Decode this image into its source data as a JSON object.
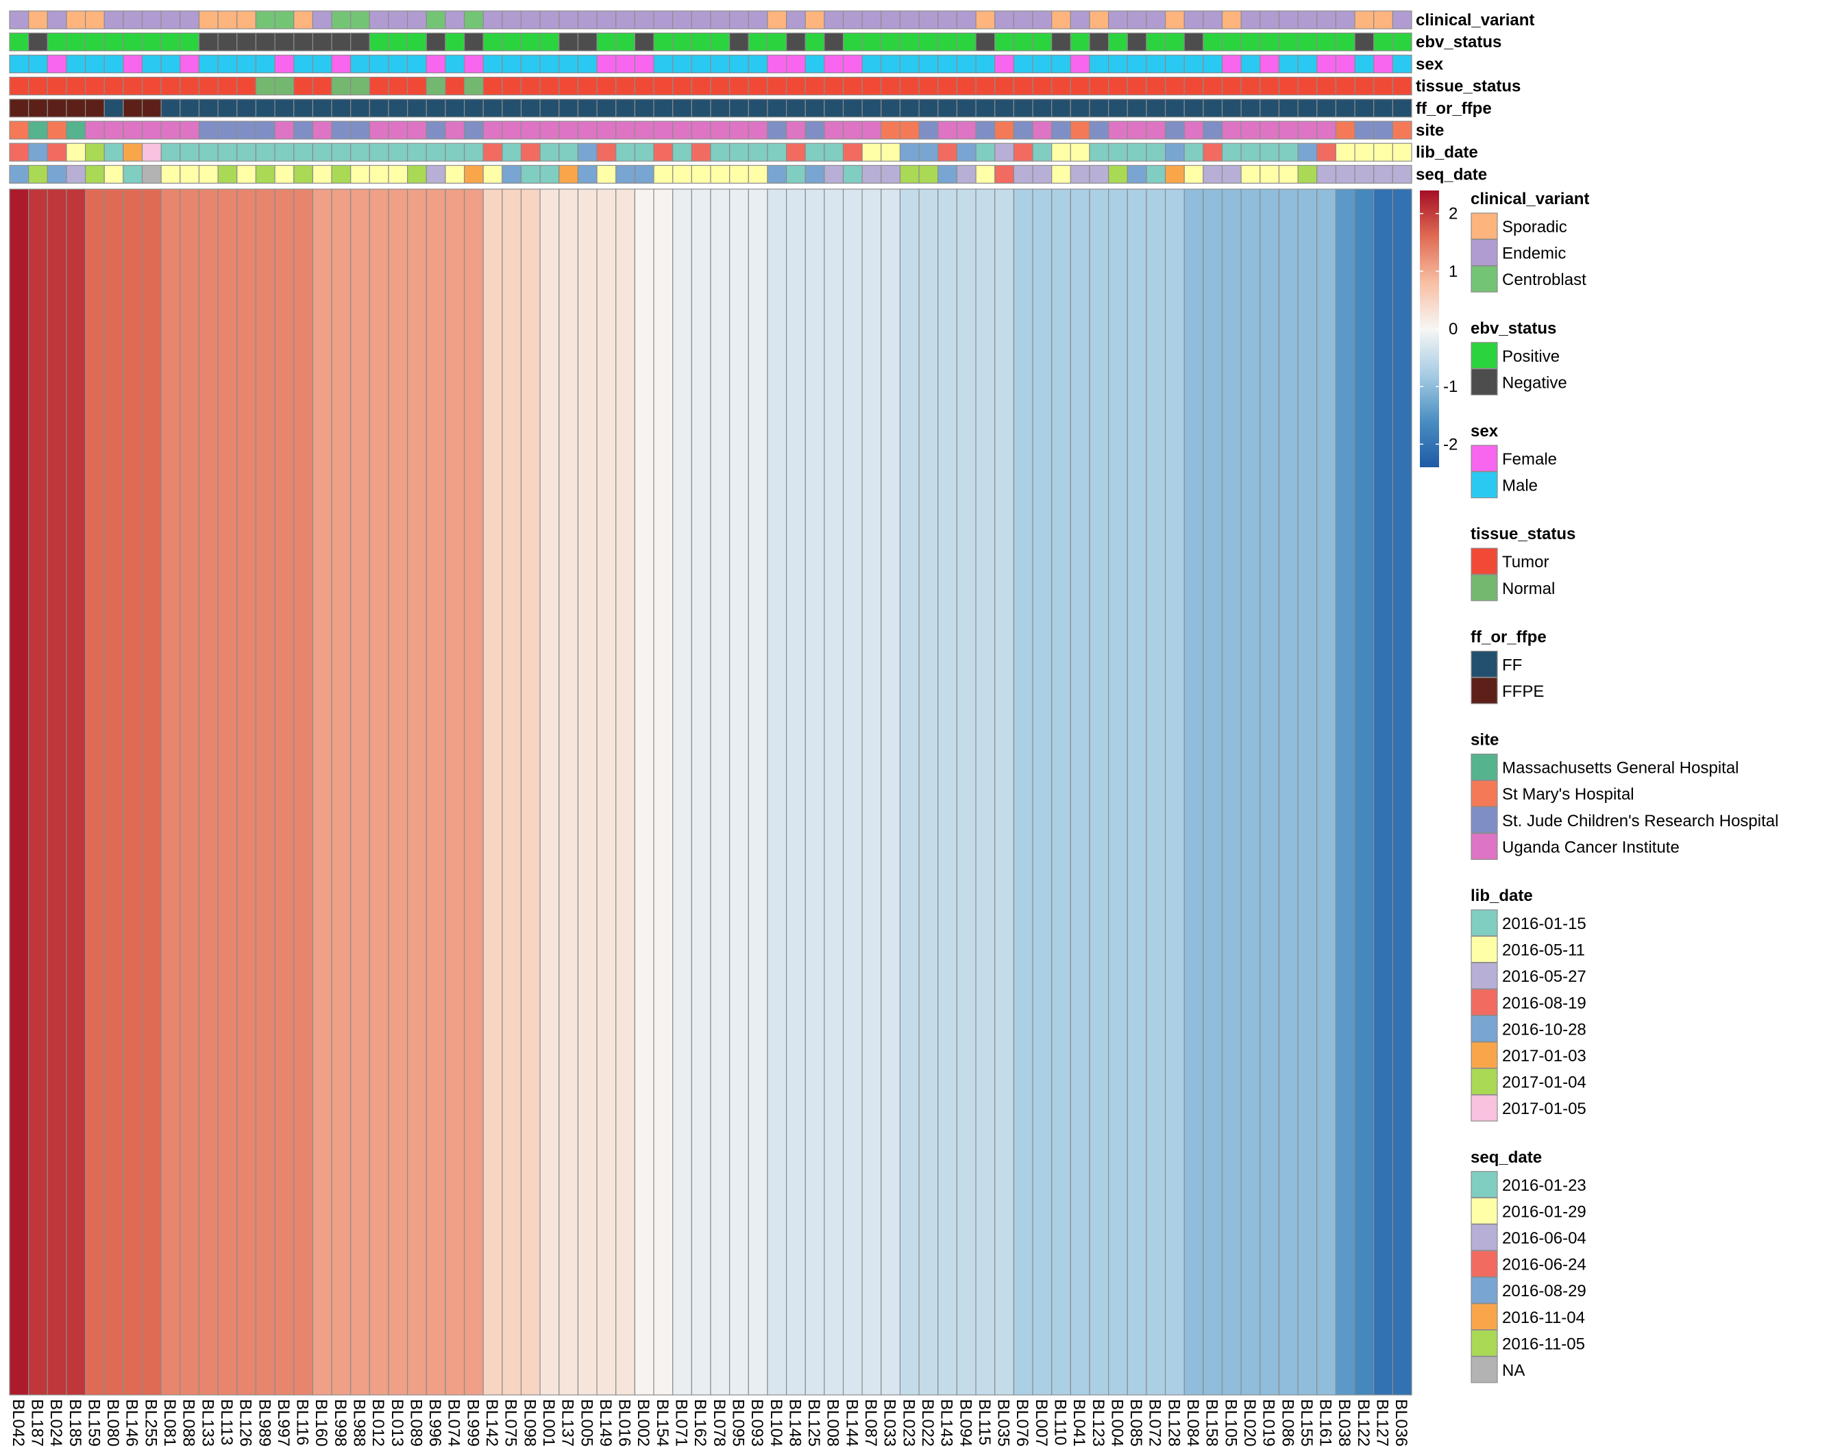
{
  "chart_data": {
    "type": "heatmap",
    "title": "",
    "samples": [
      "BL042",
      "BL187",
      "BL024",
      "BL185",
      "BL159",
      "BL080",
      "BL146",
      "BL255",
      "BL081",
      "BL088",
      "BL133",
      "BL113",
      "BL126",
      "BL989",
      "BL997",
      "BL116",
      "BL160",
      "BL998",
      "BL988",
      "BL012",
      "BL013",
      "BL089",
      "BL996",
      "BL074",
      "BL999",
      "BL142",
      "BL075",
      "BL098",
      "BL001",
      "BL137",
      "BL005",
      "BL149",
      "BL016",
      "BL002",
      "BL154",
      "BL071",
      "BL162",
      "BL078",
      "BL095",
      "BL093",
      "BL104",
      "BL148",
      "BL125",
      "BL008",
      "BL144",
      "BL087",
      "BL033",
      "BL023",
      "BL022",
      "BL143",
      "BL094",
      "BL115",
      "BL035",
      "BL076",
      "BL007",
      "BL110",
      "BL041",
      "BL123",
      "BL004",
      "BL085",
      "BL072",
      "BL128",
      "BL084",
      "BL158",
      "BL105",
      "BL020",
      "BL019",
      "BL086",
      "BL155",
      "BL161",
      "BL038",
      "BL122",
      "BL127",
      "BL036"
    ],
    "values": [
      2.3,
      2.05,
      2.05,
      2.05,
      1.6,
      1.6,
      1.6,
      1.6,
      1.35,
      1.35,
      1.35,
      1.35,
      1.35,
      1.35,
      1.35,
      1.35,
      1.1,
      1.1,
      1.1,
      1.1,
      1.1,
      1.1,
      1.1,
      1.1,
      1.1,
      0.5,
      0.5,
      0.5,
      0.25,
      0.25,
      0.25,
      0.25,
      0.25,
      0.05,
      0.05,
      -0.15,
      -0.15,
      -0.15,
      -0.15,
      -0.15,
      -0.3,
      -0.3,
      -0.3,
      -0.3,
      -0.3,
      -0.3,
      -0.3,
      -0.5,
      -0.5,
      -0.5,
      -0.5,
      -0.5,
      -0.5,
      -0.75,
      -0.75,
      -0.75,
      -0.75,
      -0.75,
      -0.75,
      -0.75,
      -0.75,
      -0.75,
      -1.0,
      -1.0,
      -1.0,
      -1.0,
      -1.0,
      -1.0,
      -1.0,
      -1.0,
      -1.45,
      -1.7,
      -2.05,
      -2.05
    ],
    "color_scale": {
      "min": -2.4,
      "max": 2.4,
      "ticks": [
        2,
        1,
        0,
        -1,
        -2
      ],
      "tick_labels": [
        "2",
        "1",
        "0",
        "-1",
        "-2"
      ],
      "stops": [
        {
          "v": -2.4,
          "color": "#1f5aa6"
        },
        {
          "v": -1.6,
          "color": "#4a8ec1"
        },
        {
          "v": -0.8,
          "color": "#a6cce4"
        },
        {
          "v": 0.0,
          "color": "#f7f6f5"
        },
        {
          "v": 0.8,
          "color": "#f8bfa4"
        },
        {
          "v": 1.6,
          "color": "#e06b54"
        },
        {
          "v": 2.4,
          "color": "#a50f26"
        }
      ]
    },
    "annotations": [
      {
        "name": "clinical_variant",
        "values": [
          "E",
          "S",
          "E",
          "S",
          "S",
          "E",
          "E",
          "E",
          "E",
          "E",
          "S",
          "S",
          "S",
          "C",
          "C",
          "S",
          "E",
          "C",
          "C",
          "E",
          "E",
          "E",
          "C",
          "E",
          "C",
          "E",
          "E",
          "E",
          "E",
          "E",
          "E",
          "E",
          "E",
          "E",
          "E",
          "E",
          "E",
          "E",
          "E",
          "E",
          "S",
          "E",
          "S",
          "E",
          "E",
          "E",
          "E",
          "E",
          "E",
          "E",
          "E",
          "S",
          "E",
          "E",
          "E",
          "S",
          "E",
          "S",
          "E",
          "E",
          "E",
          "S",
          "E",
          "E",
          "S",
          "E",
          "E",
          "E",
          "E",
          "E",
          "E",
          "S",
          "S",
          "E"
        ]
      },
      {
        "name": "ebv_status",
        "values": [
          "P",
          "N",
          "P",
          "P",
          "P",
          "P",
          "P",
          "P",
          "P",
          "P",
          "N",
          "N",
          "N",
          "N",
          "N",
          "N",
          "N",
          "N",
          "N",
          "P",
          "P",
          "P",
          "N",
          "P",
          "N",
          "P",
          "P",
          "P",
          "P",
          "N",
          "N",
          "P",
          "P",
          "N",
          "P",
          "P",
          "P",
          "P",
          "N",
          "P",
          "P",
          "N",
          "P",
          "N",
          "P",
          "P",
          "P",
          "P",
          "P",
          "P",
          "P",
          "N",
          "P",
          "P",
          "P",
          "N",
          "P",
          "N",
          "P",
          "N",
          "P",
          "P",
          "N",
          "P",
          "P",
          "P",
          "P",
          "P",
          "P",
          "P",
          "P",
          "N",
          "P",
          "P"
        ]
      },
      {
        "name": "sex",
        "values": [
          "M",
          "M",
          "F",
          "M",
          "M",
          "M",
          "F",
          "M",
          "M",
          "F",
          "M",
          "M",
          "M",
          "M",
          "F",
          "M",
          "M",
          "F",
          "M",
          "M",
          "M",
          "M",
          "F",
          "M",
          "F",
          "M",
          "M",
          "M",
          "M",
          "M",
          "M",
          "F",
          "F",
          "F",
          "M",
          "M",
          "M",
          "M",
          "M",
          "M",
          "F",
          "F",
          "M",
          "F",
          "F",
          "M",
          "M",
          "M",
          "M",
          "M",
          "M",
          "M",
          "F",
          "M",
          "M",
          "M",
          "F",
          "M",
          "M",
          "M",
          "M",
          "M",
          "M",
          "M",
          "F",
          "M",
          "F",
          "M",
          "M",
          "F",
          "F",
          "M",
          "F",
          "M"
        ]
      },
      {
        "name": "tissue_status",
        "values": [
          "T",
          "T",
          "T",
          "T",
          "T",
          "T",
          "T",
          "T",
          "T",
          "T",
          "T",
          "T",
          "T",
          "N",
          "N",
          "T",
          "T",
          "N",
          "N",
          "T",
          "T",
          "T",
          "N",
          "T",
          "N",
          "T",
          "T",
          "T",
          "T",
          "T",
          "T",
          "T",
          "T",
          "T",
          "T",
          "T",
          "T",
          "T",
          "T",
          "T",
          "T",
          "T",
          "T",
          "T",
          "T",
          "T",
          "T",
          "T",
          "T",
          "T",
          "T",
          "T",
          "T",
          "T",
          "T",
          "T",
          "T",
          "T",
          "T",
          "T",
          "T",
          "T",
          "T",
          "T",
          "T",
          "T",
          "T",
          "T",
          "T",
          "T",
          "T",
          "T",
          "T",
          "T"
        ]
      },
      {
        "name": "ff_or_ffpe",
        "values": [
          "FFPE",
          "FFPE",
          "FFPE",
          "FFPE",
          "FFPE",
          "FF",
          "FFPE",
          "FFPE",
          "FF",
          "FF",
          "FF",
          "FF",
          "FF",
          "FF",
          "FF",
          "FF",
          "FF",
          "FF",
          "FF",
          "FF",
          "FF",
          "FF",
          "FF",
          "FF",
          "FF",
          "FF",
          "FF",
          "FF",
          "FF",
          "FF",
          "FF",
          "FF",
          "FF",
          "FF",
          "FF",
          "FF",
          "FF",
          "FF",
          "FF",
          "FF",
          "FF",
          "FF",
          "FF",
          "FF",
          "FF",
          "FF",
          "FF",
          "FF",
          "FF",
          "FF",
          "FF",
          "FF",
          "FF",
          "FF",
          "FF",
          "FF",
          "FF",
          "FF",
          "FF",
          "FF",
          "FF",
          "FF",
          "FF",
          "FF",
          "FF",
          "FF",
          "FF",
          "FF",
          "FF",
          "FF",
          "FF",
          "FF",
          "FF",
          "FF"
        ]
      },
      {
        "name": "site",
        "values": [
          "STM",
          "MGH",
          "STM",
          "MGH",
          "UCI",
          "UCI",
          "UCI",
          "UCI",
          "UCI",
          "UCI",
          "SJC",
          "SJC",
          "SJC",
          "SJC",
          "UCI",
          "SJC",
          "UCI",
          "SJC",
          "SJC",
          "UCI",
          "UCI",
          "UCI",
          "SJC",
          "UCI",
          "SJC",
          "UCI",
          "UCI",
          "UCI",
          "UCI",
          "UCI",
          "UCI",
          "UCI",
          "UCI",
          "UCI",
          "UCI",
          "UCI",
          "UCI",
          "UCI",
          "UCI",
          "UCI",
          "SJC",
          "UCI",
          "SJC",
          "UCI",
          "UCI",
          "UCI",
          "STM",
          "STM",
          "SJC",
          "UCI",
          "UCI",
          "SJC",
          "STM",
          "SJC",
          "UCI",
          "SJC",
          "STM",
          "SJC",
          "UCI",
          "UCI",
          "UCI",
          "SJC",
          "UCI",
          "SJC",
          "UCI",
          "UCI",
          "UCI",
          "UCI",
          "UCI",
          "UCI",
          "STM",
          "SJC",
          "SJC",
          "STM"
        ]
      },
      {
        "name": "lib_date",
        "values": [
          "L0819",
          "L1028",
          "L0819",
          "L0511",
          "L0104",
          "L0115",
          "L0103",
          "L0105",
          "L0115",
          "L0115",
          "L0115",
          "L0115",
          "L0115",
          "L0115",
          "L0115",
          "L0115",
          "L0115",
          "L0115",
          "L0115",
          "L0115",
          "L0115",
          "L0115",
          "L0115",
          "L0115",
          "L0115",
          "L0819",
          "L0115",
          "L0819",
          "L0115",
          "L0115",
          "L1028",
          "L0819",
          "L0115",
          "L0115",
          "L0819",
          "L0115",
          "L0819",
          "L0115",
          "L0115",
          "L0115",
          "L0115",
          "L0819",
          "L0115",
          "L0115",
          "L0819",
          "L0511",
          "L0511",
          "L1028",
          "L1028",
          "L0819",
          "L1028",
          "L0115",
          "L0527",
          "L0819",
          "L0115",
          "L0511",
          "L0511",
          "L0115",
          "L0115",
          "L0115",
          "L0115",
          "L1028",
          "L0115",
          "L0819",
          "L0115",
          "L0115",
          "L0115",
          "L0115",
          "L1028",
          "L0819",
          "L0511",
          "L0511",
          "L0511",
          "L0511"
        ]
      },
      {
        "name": "seq_date",
        "values": [
          "S0829",
          "S1105",
          "S0829",
          "S0604",
          "S1105",
          "S0129",
          "S0123",
          "NA",
          "S0129",
          "S0129",
          "S0129",
          "S1105",
          "S0129",
          "S1105",
          "S0129",
          "S1105",
          "S0129",
          "S1105",
          "S0129",
          "S0129",
          "S0129",
          "S1105",
          "S0604",
          "S0129",
          "S1104",
          "S0129",
          "S0829",
          "S0123",
          "S0123",
          "S1104",
          "S0829",
          "S0129",
          "S0829",
          "S0829",
          "S0129",
          "S0129",
          "S0129",
          "S0129",
          "S0129",
          "S0129",
          "S0829",
          "S0123",
          "S0829",
          "S0604",
          "S0123",
          "S0604",
          "S0604",
          "S1105",
          "S1105",
          "S0829",
          "S0604",
          "S0129",
          "S0624",
          "S0604",
          "S0604",
          "S0129",
          "S0604",
          "S0604",
          "S1105",
          "S0829",
          "S0123",
          "S1104",
          "S0129",
          "S0604",
          "S0604",
          "S0129",
          "S0129",
          "S0129",
          "S1105",
          "S0604",
          "S0604",
          "S0604",
          "S0604",
          "S0604"
        ]
      }
    ],
    "legends": [
      {
        "title": "clinical_variant",
        "items": [
          {
            "key": "S",
            "label": "Sporadic",
            "color": "#fdb47d"
          },
          {
            "key": "E",
            "label": "Endemic",
            "color": "#b19cd2"
          },
          {
            "key": "C",
            "label": "Centroblast",
            "color": "#74c476"
          }
        ]
      },
      {
        "title": "ebv_status",
        "items": [
          {
            "key": "P",
            "label": "Positive",
            "color": "#2bd43e"
          },
          {
            "key": "N",
            "label": "Negative",
            "color": "#4d4d4d"
          }
        ]
      },
      {
        "title": "sex",
        "items": [
          {
            "key": "F",
            "label": "Female",
            "color": "#f865ee"
          },
          {
            "key": "M",
            "label": "Male",
            "color": "#2ac9f2"
          }
        ]
      },
      {
        "title": "tissue_status",
        "items": [
          {
            "key": "T",
            "label": "Tumor",
            "color": "#f04a36"
          },
          {
            "key": "N",
            "label": "Normal",
            "color": "#74b86f"
          }
        ]
      },
      {
        "title": "ff_or_ffpe",
        "items": [
          {
            "key": "FF",
            "label": "FF",
            "color": "#23506e"
          },
          {
            "key": "FFPE",
            "label": "FFPE",
            "color": "#5c2018"
          }
        ]
      },
      {
        "title": "site",
        "items": [
          {
            "key": "MGH",
            "label": "Massachusetts General Hospital",
            "color": "#55b38d"
          },
          {
            "key": "STM",
            "label": "St Mary's Hospital",
            "color": "#f47a57"
          },
          {
            "key": "SJC",
            "label": "St. Jude Children's Research Hospital",
            "color": "#7f8fc6"
          },
          {
            "key": "UCI",
            "label": "Uganda Cancer Institute",
            "color": "#de74c4"
          }
        ]
      },
      {
        "title": "lib_date",
        "items": [
          {
            "key": "L0115",
            "label": "2016-01-15",
            "color": "#80cdc1"
          },
          {
            "key": "L0511",
            "label": "2016-05-11",
            "color": "#ffffa8"
          },
          {
            "key": "L0527",
            "label": "2016-05-27",
            "color": "#b7afd5"
          },
          {
            "key": "L0819",
            "label": "2016-08-19",
            "color": "#f26b61"
          },
          {
            "key": "L1028",
            "label": "2016-10-28",
            "color": "#79a5d2"
          },
          {
            "key": "L0103",
            "label": "2017-01-03",
            "color": "#f9a64a"
          },
          {
            "key": "L0104",
            "label": "2017-01-04",
            "color": "#a9d955"
          },
          {
            "key": "L0105",
            "label": "2017-01-05",
            "color": "#f9c2df"
          }
        ]
      },
      {
        "title": "seq_date",
        "items": [
          {
            "key": "S0123",
            "label": "2016-01-23",
            "color": "#80cdc1"
          },
          {
            "key": "S0129",
            "label": "2016-01-29",
            "color": "#ffffa8"
          },
          {
            "key": "S0604",
            "label": "2016-06-04",
            "color": "#b7afd5"
          },
          {
            "key": "S0624",
            "label": "2016-06-24",
            "color": "#f26b61"
          },
          {
            "key": "S0829",
            "label": "2016-08-29",
            "color": "#79a5d2"
          },
          {
            "key": "S1104",
            "label": "2016-11-04",
            "color": "#f9a64a"
          },
          {
            "key": "S1105",
            "label": "2016-11-05",
            "color": "#a9d955"
          },
          {
            "key": "NA",
            "label": "NA",
            "color": "#b3b3b3"
          }
        ]
      }
    ]
  }
}
